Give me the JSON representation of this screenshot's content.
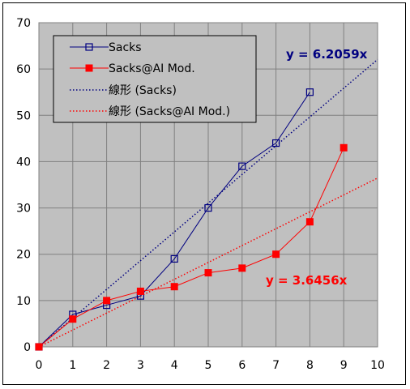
{
  "chart_data": {
    "type": "scatter",
    "xlim": [
      0,
      10
    ],
    "ylim": [
      0,
      70
    ],
    "x_ticks": [
      0,
      1,
      2,
      3,
      4,
      5,
      6,
      7,
      8,
      9,
      10
    ],
    "y_ticks": [
      0,
      10,
      20,
      30,
      40,
      50,
      60,
      70
    ],
    "grid": true,
    "plot_background": "#c0c0c0",
    "legend_position": "top-left",
    "series": [
      {
        "name": "Sacks",
        "style": "line-with-open-square-markers",
        "color": "#000080",
        "points": [
          [
            0,
            0
          ],
          [
            1,
            7
          ],
          [
            2,
            9
          ],
          [
            3,
            11
          ],
          [
            4,
            19
          ],
          [
            5,
            30
          ],
          [
            6,
            39
          ],
          [
            7,
            44
          ],
          [
            8,
            55
          ]
        ]
      },
      {
        "name": "Sacks@AI Mod.",
        "style": "line-with-filled-square-markers",
        "color": "#ff0000",
        "points": [
          [
            0,
            0
          ],
          [
            1,
            6
          ],
          [
            2,
            10
          ],
          [
            3,
            12
          ],
          [
            4,
            13
          ],
          [
            5,
            16
          ],
          [
            6,
            17
          ],
          [
            7,
            20
          ],
          [
            8,
            27
          ],
          [
            9,
            43
          ]
        ]
      }
    ],
    "trendlines": [
      {
        "name": "線形 (Sacks)",
        "slope": 6.2059,
        "color": "#000080",
        "style": "dotted",
        "equation": "y = 6.2059x"
      },
      {
        "name": "線形 (Sacks@AI Mod.)",
        "slope": 3.6456,
        "color": "#ff0000",
        "style": "dotted",
        "equation": "y = 3.6456x"
      }
    ]
  }
}
